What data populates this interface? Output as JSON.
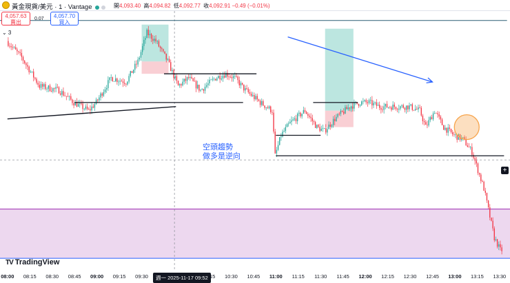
{
  "header": {
    "symbol": "黃金現貨/美元 · 1 · Vantage",
    "ohlc": [
      {
        "label": "開",
        "value": "4,093.40"
      },
      {
        "label": "高",
        "value": "4,094.82"
      },
      {
        "label": "低",
        "value": "4,092.77"
      },
      {
        "label": "收",
        "value": "4,092.91"
      }
    ],
    "change": "−0.49 (−0.01%)"
  },
  "trade_panel": {
    "sell_price": "4,057.63",
    "sell_label": "賣出",
    "spread": "0.07",
    "buy_price": "4,057.70",
    "buy_label": "買入"
  },
  "indicator_toggle": "⌄ 3",
  "annotation": {
    "line1": "空頭趨勢",
    "line2": "做多是逆向"
  },
  "cursor_label": "週一 2025-11-17   09:52",
  "logo_text": "TradingView",
  "colors": {
    "up": "#26a69a",
    "down": "#f23645",
    "trend_arrow": "#2962ff",
    "zone_fill": "#e7cbe9",
    "zone_border": "#9c27b0",
    "long_tp": "#a5ddd5",
    "long_sl": "#f8c3c9",
    "circle": "#f7a44b"
  },
  "chart_data": {
    "type": "candlestick",
    "x_labels": [
      "08:00",
      "08:15",
      "08:30",
      "08:45",
      "09:00",
      "09:15",
      "09:30",
      "09:45",
      "10:00",
      "10:15",
      "10:30",
      "10:45",
      "11:00",
      "11:15",
      "11:30",
      "11:45",
      "12:00",
      "12:15",
      "12:30",
      "12:45",
      "13:00",
      "13:15",
      "13:30"
    ],
    "bold_x_labels": [
      "08:00",
      "09:00",
      "11:00",
      "12:00",
      "13:00"
    ],
    "price_path": [
      [
        "08:00",
        4094
      ],
      [
        "08:10",
        4090
      ],
      [
        "08:22",
        4083
      ],
      [
        "08:35",
        4082
      ],
      [
        "08:45",
        4079
      ],
      [
        "08:55",
        4077
      ],
      [
        "09:00",
        4079
      ],
      [
        "09:10",
        4085
      ],
      [
        "09:20",
        4084
      ],
      [
        "09:28",
        4089
      ],
      [
        "09:34",
        4096
      ],
      [
        "09:40",
        4094
      ],
      [
        "09:48",
        4089
      ],
      [
        "09:55",
        4083
      ],
      [
        "10:02",
        4085
      ],
      [
        "10:10",
        4082
      ],
      [
        "10:20",
        4085
      ],
      [
        "10:27",
        4086
      ],
      [
        "10:33",
        4085
      ],
      [
        "10:40",
        4082
      ],
      [
        "10:50",
        4079
      ],
      [
        "10:58",
        4077
      ],
      [
        "11:00",
        4066
      ],
      [
        "11:04",
        4071
      ],
      [
        "11:10",
        4074
      ],
      [
        "11:20",
        4077
      ],
      [
        "11:28",
        4073
      ],
      [
        "11:33",
        4072
      ],
      [
        "11:40",
        4075
      ],
      [
        "11:50",
        4078
      ],
      [
        "11:57",
        4079
      ],
      [
        "12:03",
        4079
      ],
      [
        "12:10",
        4078
      ],
      [
        "12:20",
        4078
      ],
      [
        "12:30",
        4078
      ],
      [
        "12:37",
        4077
      ],
      [
        "12:41",
        4073
      ],
      [
        "12:47",
        4077
      ],
      [
        "12:53",
        4073
      ],
      [
        "13:00",
        4071
      ],
      [
        "13:06",
        4070
      ],
      [
        "13:12",
        4067
      ],
      [
        "13:20",
        4058
      ],
      [
        "13:27",
        4046
      ],
      [
        "13:31",
        4043
      ]
    ],
    "current_price": 4057.63,
    "support_zone": [
      4041,
      4053
    ],
    "horizontal_levels": [
      {
        "price": 4099,
        "from": "07:55",
        "to": "13:35"
      },
      {
        "price": 4086,
        "from": "09:45",
        "to": "10:47"
      },
      {
        "price": 4079,
        "from": "08:45",
        "to": "10:38"
      },
      {
        "price": 4079,
        "from": "11:25",
        "to": "11:55"
      },
      {
        "price": 4071,
        "from": "11:00",
        "to": "11:30"
      },
      {
        "price": 4066,
        "from": "11:00",
        "to": "13:33"
      }
    ],
    "trendline": {
      "from": [
        "08:00",
        4075
      ],
      "to": [
        "09:53",
        4078
      ]
    },
    "arrow": {
      "from": [
        "11:08",
        4095
      ],
      "to": [
        "12:45",
        4084
      ]
    },
    "long_positions": [
      {
        "from": "09:30",
        "to": "09:48",
        "entry": 4089,
        "target": 4098,
        "stop": 4086
      },
      {
        "from": "11:33",
        "to": "11:52",
        "entry": 4077,
        "target": 4097,
        "stop": 4073
      }
    ],
    "highlight_circle": {
      "time": "13:08",
      "price": 4073
    },
    "crosshair": {
      "time": "09:52",
      "price": 4065
    }
  }
}
